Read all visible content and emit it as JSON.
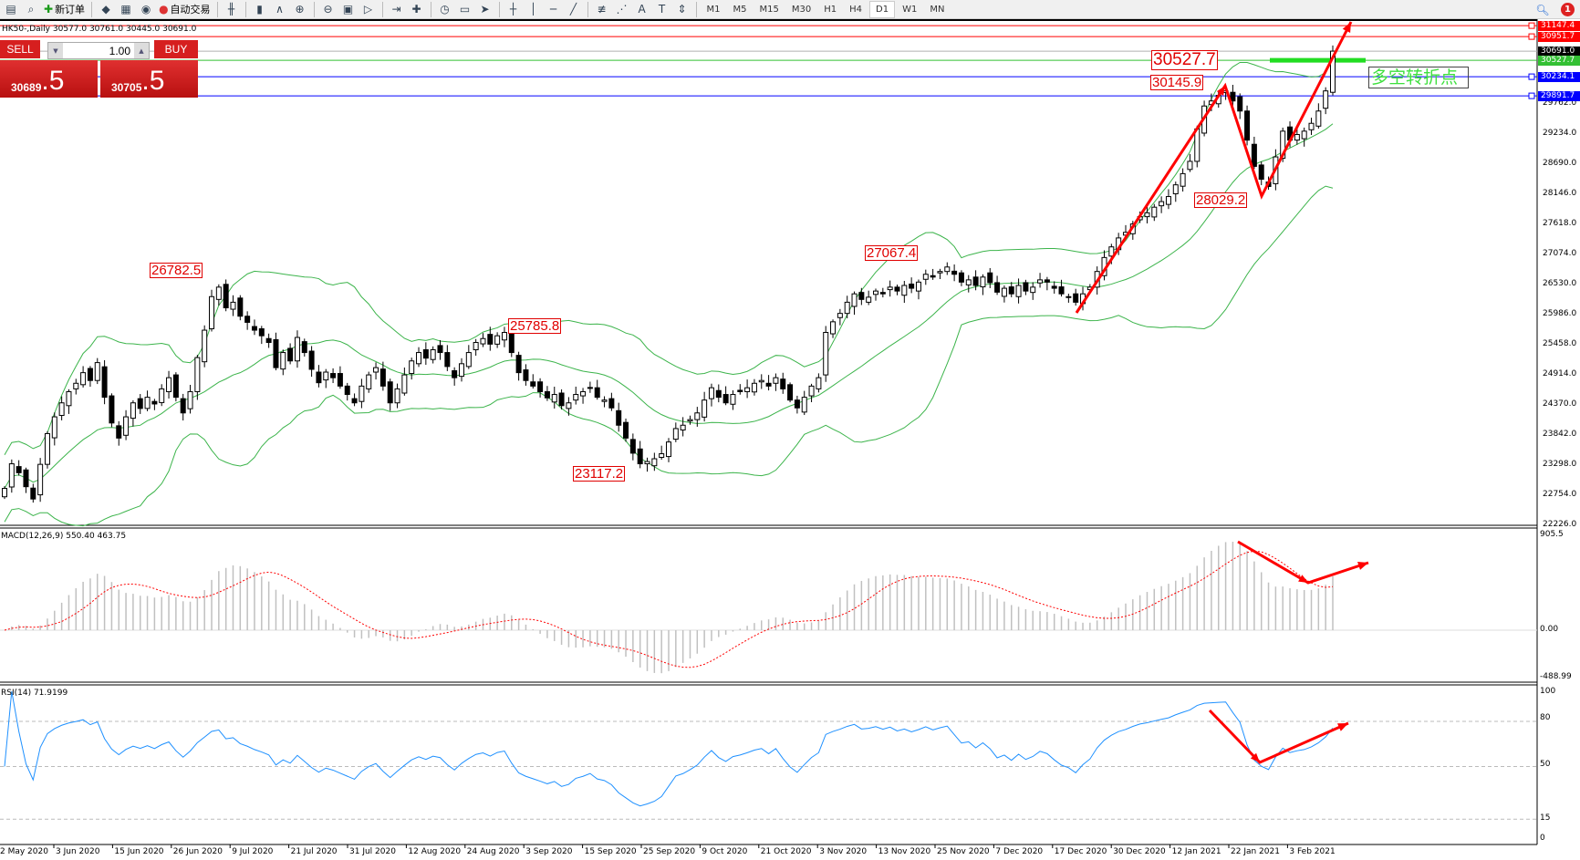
{
  "toolbar": {
    "new_order_label": "新订单",
    "auto_trading_label": "自动交易",
    "icons": [
      "new-chart-icon",
      "zoom-chart-icon",
      "new-order-icon",
      "market-watch-icon",
      "navigator-icon",
      "signals-icon",
      "auto-trading-icon",
      "bar-chart-icon",
      "candlestick-icon",
      "line-chart-icon",
      "zoom-in-icon",
      "zoom-out-icon",
      "tile-windows-icon",
      "auto-scroll-icon",
      "chart-shift-icon",
      "indicators-icon",
      "periods-icon",
      "templates-icon",
      "cursor-icon",
      "crosshair-icon",
      "vertical-line-icon",
      "horizontal-line-icon",
      "trendline-icon",
      "fibonacci-icon",
      "equidistant-channel-icon",
      "text-icon",
      "text-label-icon",
      "arrows-icon"
    ],
    "timeframes": [
      "M1",
      "M5",
      "M15",
      "M30",
      "H1",
      "H4",
      "D1",
      "W1",
      "MN"
    ],
    "active_timeframe": "D1",
    "notification_count": "1"
  },
  "chart_info": "HK50-,Daily  30577.0 30761.0 30445.0 30691.0",
  "ticket": {
    "sell_label": "SELL",
    "buy_label": "BUY",
    "lot": "1.00",
    "sell_main": "30689",
    "sell_frac": ".5",
    "buy_main": "30705",
    "buy_frac": ".5"
  },
  "price_axis": [
    "29762.0",
    "29234.0",
    "28690.0",
    "28146.0",
    "27618.0",
    "27074.0",
    "26530.0",
    "25986.0",
    "25458.0",
    "24914.0",
    "24370.0",
    "23842.0",
    "23298.0",
    "22754.0",
    "22226.0"
  ],
  "price_tags": [
    {
      "value": "31147.4",
      "color": "#ff0000"
    },
    {
      "value": "30951.7",
      "color": "#ff0000"
    },
    {
      "value": "30691.0",
      "color": "#000000"
    },
    {
      "value": "30527.7",
      "color": "#33c033"
    },
    {
      "value": "30234.1",
      "color": "#0000ff"
    },
    {
      "value": "29891.7",
      "color": "#0000ff"
    }
  ],
  "annotations": {
    "labels": [
      "26782.5",
      "25785.8",
      "23117.2",
      "27067.4",
      "30527.7",
      "30145.9",
      "28029.2"
    ],
    "pivot_text": "多空转折点"
  },
  "dates": [
    "2 May 2020",
    "3 Jun 2020",
    "15 Jun 2020",
    "26 Jun 2020",
    "9 Jul 2020",
    "21 Jul 2020",
    "31 Jul 2020",
    "12 Aug 2020",
    "24 Aug 2020",
    "3 Sep 2020",
    "15 Sep 2020",
    "25 Sep 2020",
    "9 Oct 2020",
    "21 Oct 2020",
    "3 Nov 2020",
    "13 Nov 2020",
    "25 Nov 2020",
    "7 Dec 2020",
    "17 Dec 2020",
    "30 Dec 2020",
    "12 Jan 2021",
    "22 Jan 2021",
    "3 Feb 2021"
  ],
  "macd": {
    "label": "MACD(12,26,9) 550.40 463.75",
    "axis": [
      "905.5",
      "0.00",
      "-488.99"
    ],
    "range": [
      -488.99,
      905.5
    ]
  },
  "rsi": {
    "label": "RSI(14) 71.9199",
    "axis": [
      "100",
      "80",
      "50",
      "15",
      "0"
    ],
    "levels": [
      80,
      50,
      15
    ]
  },
  "colors": {
    "bands": "#3cb44b",
    "signal": "#ff0000",
    "rsi": "#1e90ff",
    "arrows": "#ff0000",
    "histogram": "#c0c0c0"
  },
  "chart_data": {
    "type": "candlestick",
    "symbol": "HK50-",
    "timeframe": "Daily",
    "ylim": [
      22226,
      31147.4
    ],
    "indicators": [
      "Bollinger Bands",
      "MACD(12,26,9)",
      "RSI(14)"
    ],
    "horizontal_lines": [
      31147.4,
      30951.7,
      30691.0,
      30527.7,
      30234.1,
      29891.7
    ],
    "close": [
      22870,
      23310,
      23150,
      22900,
      22680,
      23300,
      23850,
      24150,
      24400,
      24600,
      24750,
      24940,
      24800,
      25120,
      24500,
      24040,
      23770,
      24150,
      24400,
      24300,
      24500,
      24380,
      24650,
      24850,
      24500,
      24220,
      24600,
      25210,
      25700,
      26300,
      26470,
      26100,
      26200,
      25950,
      25840,
      25700,
      25600,
      25480,
      25030,
      25300,
      25150,
      25570,
      25300,
      25000,
      24760,
      24950,
      24850,
      24700,
      24550,
      24400,
      24700,
      24900,
      25030,
      24700,
      24400,
      24650,
      24900,
      25150,
      25300,
      25200,
      25350,
      25300,
      25050,
      24850,
      25100,
      25300,
      25480,
      25550,
      25450,
      25600,
      25660,
      25300,
      24940,
      24800,
      24700,
      24600,
      24490,
      24550,
      24350,
      24400,
      24550,
      24600,
      24670,
      24500,
      24450,
      24310,
      24000,
      23770,
      23500,
      23310,
      23350,
      23400,
      23490,
      23700,
      23940,
      24000,
      24100,
      24220,
      24450,
      24670,
      24500,
      24400,
      24550,
      24600,
      24670,
      24750,
      24800,
      24700,
      24850,
      24650,
      24450,
      24310,
      24500,
      24700,
      24850,
      25660,
      25850,
      26000,
      26200,
      26350,
      26250,
      26290,
      26400,
      26350,
      26470,
      26400,
      26500,
      26450,
      26560,
      26700,
      26650,
      26750,
      26830,
      26700,
      26560,
      26600,
      26500,
      26650,
      26550,
      26380,
      26450,
      26350,
      26500,
      26400,
      26470,
      26600,
      26560,
      26450,
      26350,
      26300,
      26200,
      26350,
      26470,
      26750,
      27000,
      27190,
      27350,
      27450,
      27600,
      27730,
      27800,
      27900,
      28000,
      28090,
      28300,
      28500,
      28720,
      29300,
      29710,
      29800,
      29900,
      29980,
      29800,
      29620,
      29100,
      28630,
      28400,
      28270,
      28800,
      29260,
      29100,
      29200,
      29260,
      29400,
      29620,
      29980,
      30691
    ]
  }
}
